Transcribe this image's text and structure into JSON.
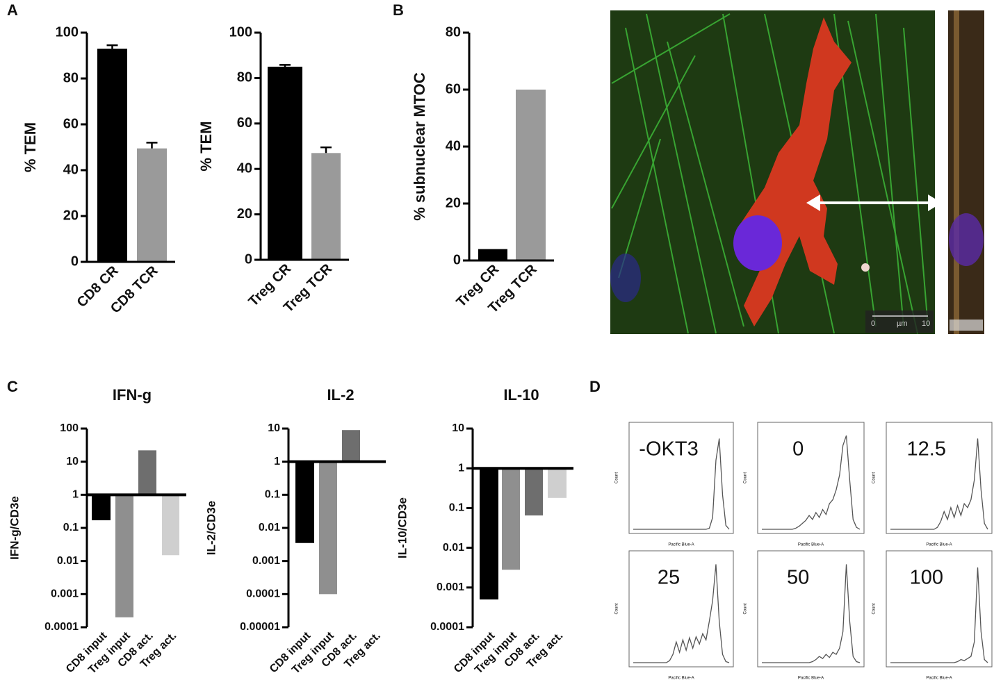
{
  "panel_labels": [
    "A",
    "B",
    "C",
    "D"
  ],
  "image": {
    "scale_labels": [
      "0",
      "µm",
      "10"
    ]
  },
  "chart_data": [
    {
      "type": "bar",
      "ylabel": "% TEM",
      "categories": [
        "CD8 CR",
        "CD8 TCR"
      ],
      "values": [
        93,
        49.5
      ],
      "errors": [
        1.5,
        2.5
      ],
      "colors": [
        "#000000",
        "#9a9a9a"
      ],
      "ylim": [
        0,
        100
      ],
      "yticks": [
        0,
        20,
        40,
        60,
        80,
        100
      ]
    },
    {
      "type": "bar",
      "ylabel": "% TEM",
      "categories": [
        "Treg CR",
        "Treg TCR"
      ],
      "values": [
        85,
        47
      ],
      "errors": [
        0.8,
        2.5
      ],
      "colors": [
        "#000000",
        "#9a9a9a"
      ],
      "ylim": [
        0,
        100
      ],
      "yticks": [
        0,
        20,
        40,
        60,
        80,
        100
      ]
    },
    {
      "type": "bar",
      "ylabel": "% subnuclear MTOC",
      "categories": [
        "Treg CR",
        "Treg TCR"
      ],
      "values": [
        4,
        60
      ],
      "colors": [
        "#000000",
        "#9a9a9a"
      ],
      "ylim": [
        0,
        80
      ],
      "yticks": [
        0,
        20,
        40,
        60,
        80
      ]
    },
    {
      "type": "bar",
      "title": "IFN-g",
      "ylabel": "IFN-g/CD3e",
      "log": true,
      "categories": [
        "CD8 input",
        "Treg input",
        "CD8 act.",
        "Treg act."
      ],
      "values": [
        0.17,
        0.0002,
        22,
        0.015
      ],
      "colors": [
        "#000000",
        "#8f8f8f",
        "#6e6e6e",
        "#cfcfcf"
      ],
      "ylim": [
        0.0001,
        100
      ],
      "yticks": [
        0.0001,
        0.001,
        0.01,
        0.1,
        1,
        10,
        100
      ]
    },
    {
      "type": "bar",
      "title": "IL-2",
      "ylabel": "IL-2/CD3e",
      "log": true,
      "categories": [
        "CD8 input",
        "Treg input",
        "CD8 act.",
        "Treg act."
      ],
      "values": [
        0.0035,
        0.0001,
        9,
        null
      ],
      "colors": [
        "#000000",
        "#8f8f8f",
        "#6e6e6e",
        "#cfcfcf"
      ],
      "ylim": [
        1e-05,
        10
      ],
      "yticks": [
        1e-05,
        0.0001,
        0.001,
        0.01,
        0.1,
        1,
        10
      ]
    },
    {
      "type": "bar",
      "title": "IL-10",
      "ylabel": "IL-10/CD3e",
      "log": true,
      "categories": [
        "CD8 input",
        "Treg input",
        "CD8 act.",
        "Treg act."
      ],
      "values": [
        0.0005,
        0.0028,
        0.065,
        0.18
      ],
      "colors": [
        "#000000",
        "#8f8f8f",
        "#6e6e6e",
        "#cfcfcf"
      ],
      "ylim": [
        0.0001,
        10
      ],
      "yticks": [
        0.0001,
        0.001,
        0.01,
        0.1,
        1,
        10
      ]
    },
    {
      "type": "line",
      "title": "-OKT3",
      "xlabel": "Pacific Blue-A",
      "ylabel": "Count",
      "ylim": [
        0,
        100
      ],
      "values": [
        0,
        0,
        0,
        0,
        0,
        0,
        0,
        0,
        0,
        0,
        0,
        0,
        0,
        0,
        0,
        0,
        0,
        0,
        0,
        0,
        0,
        0,
        0,
        1,
        12,
        70,
        92,
        35,
        4,
        0
      ]
    },
    {
      "type": "line",
      "title": "0",
      "xlabel": "Pacific Blue-A",
      "ylabel": "Count",
      "ylim": [
        0,
        100
      ],
      "values": [
        0,
        0,
        0,
        0,
        0,
        0,
        0,
        0,
        0,
        0,
        1,
        3,
        6,
        9,
        14,
        10,
        17,
        12,
        20,
        15,
        26,
        30,
        40,
        55,
        85,
        95,
        50,
        10,
        2,
        0
      ]
    },
    {
      "type": "line",
      "title": "12.5",
      "xlabel": "Pacific Blue-A",
      "ylabel": "Count",
      "ylim": [
        0,
        100
      ],
      "values": [
        0,
        0,
        0,
        0,
        0,
        0,
        0,
        0,
        0,
        0,
        0,
        0,
        0,
        0,
        2,
        8,
        18,
        10,
        22,
        12,
        24,
        14,
        26,
        22,
        30,
        50,
        92,
        40,
        6,
        0
      ]
    },
    {
      "type": "line",
      "title": "25",
      "xlabel": "Pacific Blue-A",
      "ylabel": "Count",
      "ylim": [
        0,
        100
      ],
      "values": [
        0,
        0,
        0,
        0,
        0,
        0,
        0,
        0,
        0,
        0,
        0,
        2,
        8,
        20,
        10,
        22,
        12,
        24,
        14,
        25,
        18,
        28,
        22,
        40,
        60,
        95,
        40,
        8,
        1,
        0
      ]
    },
    {
      "type": "line",
      "title": "50",
      "xlabel": "Pacific Blue-A",
      "ylabel": "Count",
      "ylim": [
        0,
        100
      ],
      "values": [
        0,
        0,
        0,
        0,
        0,
        0,
        0,
        0,
        0,
        0,
        0,
        0,
        0,
        0,
        0,
        1,
        3,
        6,
        4,
        8,
        5,
        10,
        8,
        14,
        30,
        95,
        40,
        6,
        1,
        0
      ]
    },
    {
      "type": "line",
      "title": "100",
      "xlabel": "Pacific Blue-A",
      "ylabel": "Count",
      "ylim": [
        0,
        100
      ],
      "values": [
        0,
        0,
        0,
        0,
        0,
        0,
        0,
        0,
        0,
        0,
        0,
        0,
        0,
        0,
        0,
        0,
        0,
        0,
        0,
        0,
        1,
        3,
        2,
        4,
        6,
        20,
        92,
        30,
        3,
        0
      ]
    }
  ]
}
